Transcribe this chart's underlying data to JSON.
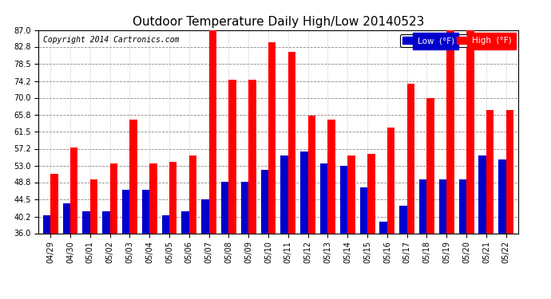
{
  "title": "Outdoor Temperature Daily High/Low 20140523",
  "copyright": "Copyright 2014 Cartronics.com",
  "legend_low": "Low  (°F)",
  "legend_high": "High  (°F)",
  "categories": [
    "04/29",
    "04/30",
    "05/01",
    "05/02",
    "05/03",
    "05/04",
    "05/05",
    "05/06",
    "05/07",
    "05/08",
    "05/09",
    "05/10",
    "05/11",
    "05/12",
    "05/13",
    "05/14",
    "05/15",
    "05/16",
    "05/17",
    "05/18",
    "05/19",
    "05/20",
    "05/21",
    "05/22"
  ],
  "high": [
    51.0,
    57.5,
    49.5,
    53.5,
    64.5,
    53.5,
    54.0,
    55.5,
    87.0,
    74.5,
    74.5,
    84.0,
    81.5,
    65.5,
    64.5,
    55.5,
    56.0,
    62.5,
    73.5,
    70.0,
    87.0,
    87.0,
    67.0,
    67.0
  ],
  "low": [
    40.5,
    43.5,
    41.5,
    41.5,
    47.0,
    47.0,
    40.5,
    41.5,
    44.5,
    49.0,
    49.0,
    52.0,
    55.5,
    56.5,
    53.5,
    53.0,
    47.5,
    39.0,
    43.0,
    49.5,
    49.5,
    49.5,
    55.5,
    54.5
  ],
  "ymin": 36.0,
  "ymax": 87.0,
  "yticks": [
    36.0,
    40.2,
    44.5,
    48.8,
    53.0,
    57.2,
    61.5,
    65.8,
    70.0,
    74.2,
    78.5,
    82.8,
    87.0
  ],
  "bar_width": 0.38,
  "high_color": "#ff0000",
  "low_color": "#0000cc",
  "bg_color": "#ffffff",
  "grid_color": "#888888",
  "title_fontsize": 11,
  "tick_fontsize": 7,
  "legend_fontsize": 7.5,
  "copyright_fontsize": 7
}
